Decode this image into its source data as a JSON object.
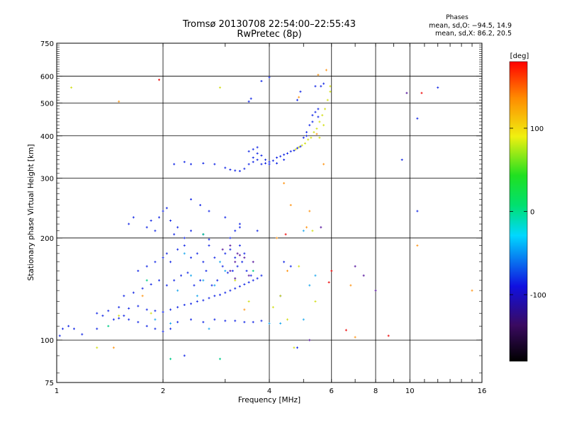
{
  "chart_data": {
    "type": "scatter",
    "title": "Tromsø 20130708 22:54:00–22:55:43",
    "subtitle": "RwPretec (8p)",
    "xlabel": "Frequency [MHz]",
    "ylabel": "Stationary phase Virtual Height [km]",
    "x_scale": "log",
    "y_scale": "log",
    "xlim": [
      1,
      16
    ],
    "ylim": [
      75,
      750
    ],
    "x_ticks": [
      1,
      2,
      4,
      6,
      8,
      10,
      16
    ],
    "y_ticks": [
      75,
      100,
      200,
      300,
      400,
      500,
      600,
      750
    ],
    "x_gridlines": [
      2,
      4,
      6,
      8,
      10
    ],
    "y_gridlines": [
      100,
      200,
      300,
      400,
      500,
      600
    ],
    "colorbar": {
      "label": "[deg]",
      "range": [
        -180,
        180
      ],
      "ticks": [
        100,
        0,
        -100
      ]
    },
    "stats": {
      "heading": "Phases",
      "o_mode": "mean, sd,O: −94.5, 14.9",
      "x_mode": "mean, sd,X:  86.2, 20.5"
    },
    "series": [
      {
        "color": "#1a2ee6",
        "points": [
          [
            1.02,
            103
          ],
          [
            1.04,
            108
          ],
          [
            1.08,
            110
          ],
          [
            1.12,
            108
          ],
          [
            1.18,
            104
          ],
          [
            1.3,
            108
          ],
          [
            1.45,
            115
          ],
          [
            1.5,
            116
          ],
          [
            1.55,
            118
          ],
          [
            1.6,
            115
          ],
          [
            1.7,
            113
          ],
          [
            1.8,
            110
          ],
          [
            1.9,
            108
          ],
          [
            2.0,
            106
          ],
          [
            2.1,
            108
          ],
          [
            2.2,
            113
          ],
          [
            2.4,
            115
          ],
          [
            2.6,
            113
          ],
          [
            2.8,
            115
          ],
          [
            3.0,
            114
          ],
          [
            3.2,
            114
          ],
          [
            3.4,
            113
          ],
          [
            3.6,
            113
          ],
          [
            3.8,
            114
          ],
          [
            1.5,
            125
          ],
          [
            1.6,
            124
          ],
          [
            1.7,
            126
          ],
          [
            1.8,
            123
          ],
          [
            1.9,
            122
          ],
          [
            2.0,
            121
          ],
          [
            2.1,
            123
          ],
          [
            2.2,
            125
          ],
          [
            2.3,
            127
          ],
          [
            2.4,
            128
          ],
          [
            2.5,
            130
          ],
          [
            2.6,
            131
          ],
          [
            2.7,
            133
          ],
          [
            2.8,
            135
          ],
          [
            2.9,
            136
          ],
          [
            3.0,
            138
          ],
          [
            3.1,
            140
          ],
          [
            3.2,
            142
          ],
          [
            3.3,
            144
          ],
          [
            3.4,
            146
          ],
          [
            3.5,
            148
          ],
          [
            3.6,
            150
          ],
          [
            3.7,
            152
          ],
          [
            3.8,
            155
          ],
          [
            1.55,
            135
          ],
          [
            1.65,
            138
          ],
          [
            1.75,
            142
          ],
          [
            1.85,
            146
          ],
          [
            1.95,
            150
          ],
          [
            2.05,
            145
          ],
          [
            2.15,
            150
          ],
          [
            2.25,
            155
          ],
          [
            2.35,
            158
          ],
          [
            2.45,
            145
          ],
          [
            2.55,
            150
          ],
          [
            2.65,
            160
          ],
          [
            2.75,
            145
          ],
          [
            2.85,
            150
          ],
          [
            2.95,
            165
          ],
          [
            3.05,
            158
          ],
          [
            3.15,
            160
          ],
          [
            3.25,
            165
          ],
          [
            3.35,
            170
          ],
          [
            3.45,
            160
          ],
          [
            3.55,
            155
          ],
          [
            1.7,
            160
          ],
          [
            1.8,
            165
          ],
          [
            1.9,
            170
          ],
          [
            2.0,
            175
          ],
          [
            2.05,
            180
          ],
          [
            2.1,
            170
          ],
          [
            2.2,
            185
          ],
          [
            2.3,
            190
          ],
          [
            2.4,
            175
          ],
          [
            2.5,
            180
          ],
          [
            2.6,
            170
          ],
          [
            2.7,
            190
          ],
          [
            2.8,
            175
          ],
          [
            3.0,
            180
          ],
          [
            3.1,
            185
          ],
          [
            3.2,
            175
          ],
          [
            3.3,
            190
          ],
          [
            3.4,
            180
          ],
          [
            1.8,
            215
          ],
          [
            1.85,
            225
          ],
          [
            1.9,
            210
          ],
          [
            1.95,
            230
          ],
          [
            2.0,
            240
          ],
          [
            2.05,
            245
          ],
          [
            2.1,
            225
          ],
          [
            2.15,
            205
          ],
          [
            2.2,
            215
          ],
          [
            2.3,
            200
          ],
          [
            2.4,
            210
          ],
          [
            2.6,
            205
          ],
          [
            2.7,
            198
          ],
          [
            3.1,
            200
          ],
          [
            3.2,
            210
          ],
          [
            3.3,
            220
          ],
          [
            2.15,
            330
          ],
          [
            2.3,
            335
          ],
          [
            2.4,
            330
          ],
          [
            2.6,
            332
          ],
          [
            2.8,
            330
          ],
          [
            3.0,
            322
          ],
          [
            3.1,
            318
          ],
          [
            3.2,
            316
          ],
          [
            3.3,
            315
          ],
          [
            3.4,
            320
          ],
          [
            3.5,
            330
          ],
          [
            3.6,
            345
          ],
          [
            3.7,
            355
          ],
          [
            3.8,
            350
          ],
          [
            3.9,
            340
          ],
          [
            4.0,
            335
          ],
          [
            4.1,
            338
          ],
          [
            4.2,
            345
          ],
          [
            4.3,
            348
          ],
          [
            4.4,
            352
          ],
          [
            4.5,
            355
          ],
          [
            4.6,
            360
          ],
          [
            4.7,
            362
          ],
          [
            4.8,
            368
          ],
          [
            4.9,
            372
          ],
          [
            3.6,
            335
          ],
          [
            3.7,
            340
          ],
          [
            3.8,
            330
          ],
          [
            3.9,
            332
          ],
          [
            4.0,
            330
          ],
          [
            4.2,
            332
          ],
          [
            4.4,
            340
          ],
          [
            3.5,
            360
          ],
          [
            3.6,
            365
          ],
          [
            3.7,
            370
          ],
          [
            5.0,
            395
          ],
          [
            5.1,
            400
          ],
          [
            5.2,
            430
          ],
          [
            5.3,
            460
          ],
          [
            5.4,
            470
          ],
          [
            5.5,
            480
          ],
          [
            5.1,
            410
          ],
          [
            5.3,
            440
          ],
          [
            5.5,
            455
          ],
          [
            3.5,
            505
          ],
          [
            3.55,
            515
          ],
          [
            3.8,
            580
          ],
          [
            4.0,
            595
          ],
          [
            5.4,
            560
          ],
          [
            5.6,
            560
          ],
          [
            5.7,
            570
          ],
          [
            4.8,
            510
          ],
          [
            4.9,
            540
          ],
          [
            1.3,
            120
          ],
          [
            1.35,
            118
          ],
          [
            1.4,
            122
          ],
          [
            1.6,
            220
          ],
          [
            1.65,
            230
          ],
          [
            2.4,
            260
          ],
          [
            2.55,
            250
          ],
          [
            2.7,
            240
          ],
          [
            3.0,
            230
          ],
          [
            3.3,
            215
          ],
          [
            3.7,
            210
          ],
          [
            4.4,
            170
          ],
          [
            4.6,
            165
          ],
          [
            4.3,
            135
          ],
          [
            10.5,
            450
          ],
          [
            10.5,
            240
          ],
          [
            12.0,
            555
          ],
          [
            4.8,
            95
          ],
          [
            2.3,
            90
          ],
          [
            9.5,
            340
          ]
        ]
      },
      {
        "color": "#22aaee",
        "points": [
          [
            2.3,
            180
          ],
          [
            2.6,
            150
          ],
          [
            2.8,
            145
          ],
          [
            2.9,
            170
          ],
          [
            3.0,
            160
          ],
          [
            2.2,
            140
          ],
          [
            2.4,
            155
          ],
          [
            2.5,
            135
          ],
          [
            1.9,
            115
          ],
          [
            2.1,
            112
          ],
          [
            4.0,
            112
          ],
          [
            2.7,
            108
          ],
          [
            5.0,
            115
          ],
          [
            4.3,
            112
          ],
          [
            5.2,
            145
          ],
          [
            5.4,
            155
          ],
          [
            5.0,
            210
          ]
        ]
      },
      {
        "color": "#00cc88",
        "points": [
          [
            2.1,
            88
          ],
          [
            2.9,
            88
          ],
          [
            1.8,
            150
          ],
          [
            2.6,
            205
          ],
          [
            1.4,
            110
          ],
          [
            3.6,
            160
          ]
        ]
      },
      {
        "color": "#d4e020",
        "points": [
          [
            4.95,
            375
          ],
          [
            5.05,
            380
          ],
          [
            5.15,
            390
          ],
          [
            5.25,
            395
          ],
          [
            5.35,
            410
          ],
          [
            5.45,
            420
          ],
          [
            5.55,
            440
          ],
          [
            5.65,
            460
          ],
          [
            5.75,
            480
          ],
          [
            5.85,
            510
          ],
          [
            5.95,
            540
          ],
          [
            4.85,
            370
          ],
          [
            4.75,
            365
          ],
          [
            5.95,
            560
          ],
          [
            5.55,
            395
          ],
          [
            5.7,
            430
          ],
          [
            4.5,
            115
          ],
          [
            4.1,
            125
          ],
          [
            4.7,
            95
          ],
          [
            1.5,
            118
          ],
          [
            1.85,
            120
          ],
          [
            3.2,
            150
          ],
          [
            3.5,
            130
          ],
          [
            4.3,
            135
          ],
          [
            4.85,
            165
          ],
          [
            5.3,
            210
          ],
          [
            5.4,
            130
          ],
          [
            1.3,
            95
          ],
          [
            1.1,
            555
          ],
          [
            2.9,
            555
          ]
        ]
      },
      {
        "color": "#ff9a20",
        "points": [
          [
            4.85,
            520
          ],
          [
            5.45,
            405
          ],
          [
            1.75,
            135
          ],
          [
            1.45,
            95
          ],
          [
            3.4,
            123
          ],
          [
            4.2,
            200
          ],
          [
            4.4,
            290
          ],
          [
            4.5,
            160
          ],
          [
            5.1,
            215
          ],
          [
            5.7,
            330
          ],
          [
            5.2,
            240
          ],
          [
            5.5,
            605
          ],
          [
            5.8,
            625
          ],
          [
            7.0,
            102
          ],
          [
            6.8,
            145
          ],
          [
            15.0,
            140
          ],
          [
            10.5,
            190
          ],
          [
            1.5,
            505
          ],
          [
            4.6,
            250
          ]
        ]
      },
      {
        "color": "#ee1111",
        "points": [
          [
            6.6,
            107
          ],
          [
            8.7,
            103
          ],
          [
            10.8,
            535
          ],
          [
            1.95,
            585
          ],
          [
            6.0,
            160
          ],
          [
            5.9,
            148
          ],
          [
            4.45,
            205
          ]
        ]
      },
      {
        "color": "#5a1aa0",
        "points": [
          [
            3.1,
            160
          ],
          [
            3.2,
            170
          ],
          [
            3.3,
            178
          ],
          [
            3.4,
            175
          ],
          [
            3.2,
            152
          ],
          [
            3.5,
            155
          ],
          [
            2.95,
            185
          ],
          [
            3.1,
            190
          ],
          [
            3.25,
            180
          ],
          [
            3.6,
            170
          ],
          [
            7.0,
            165
          ],
          [
            7.4,
            155
          ],
          [
            8.0,
            140
          ],
          [
            9.8,
            535
          ],
          [
            5.6,
            215
          ],
          [
            5.2,
            100
          ]
        ]
      }
    ]
  }
}
